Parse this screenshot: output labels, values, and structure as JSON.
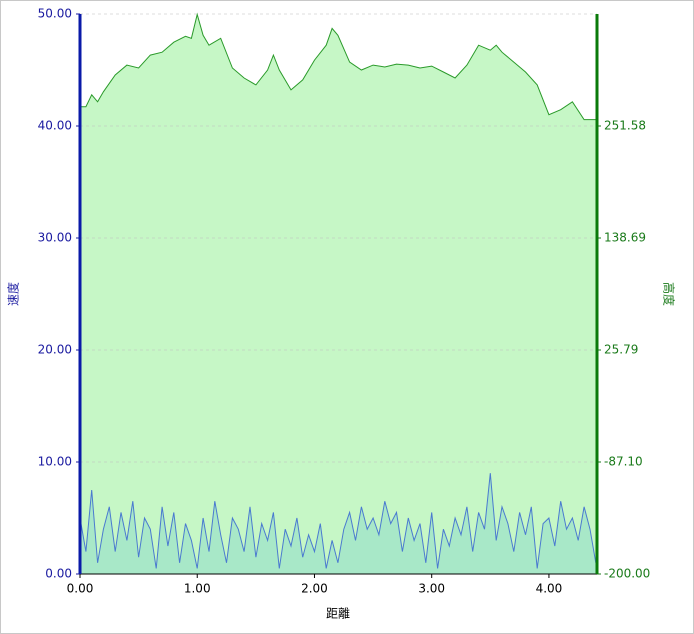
{
  "chart_data": {
    "type": "dual-area",
    "xlabel": "距離",
    "ylabel": "速度",
    "y2label": "高度",
    "xlim": [
      0,
      4.41
    ],
    "xticks": [
      {
        "value": 0,
        "label": "0.00"
      },
      {
        "value": 1,
        "label": "1.00"
      },
      {
        "value": 2,
        "label": "2.00"
      },
      {
        "value": 3,
        "label": "3.00"
      },
      {
        "value": 4,
        "label": "4.00"
      }
    ],
    "ylim": [
      0,
      50
    ],
    "yticks": [
      {
        "value": 0,
        "label": "0.00"
      },
      {
        "value": 10,
        "label": "10.00"
      },
      {
        "value": 20,
        "label": "20.00"
      },
      {
        "value": 30,
        "label": "30.00"
      },
      {
        "value": 40,
        "label": "40.00"
      },
      {
        "value": 50,
        "label": "50.00"
      }
    ],
    "y2lim": [
      -200,
      364.47
    ],
    "y2ticks": [
      {
        "value": -200,
        "label": "-200.00"
      },
      {
        "value": -87.1,
        "label": "-87.10"
      },
      25.79,
      138.69,
      251.58
    ],
    "grid": true,
    "series": [
      {
        "name": "高度",
        "axis": "y2",
        "color": "#2a9a2a",
        "fill": "#c6f7c6",
        "x": [
          0,
          0.05,
          0.1,
          0.15,
          0.2,
          0.3,
          0.4,
          0.5,
          0.6,
          0.7,
          0.8,
          0.9,
          0.95,
          1.0,
          1.05,
          1.1,
          1.2,
          1.3,
          1.4,
          1.5,
          1.6,
          1.65,
          1.7,
          1.8,
          1.9,
          2.0,
          2.1,
          2.15,
          2.2,
          2.3,
          2.4,
          2.5,
          2.6,
          2.7,
          2.8,
          2.9,
          3.0,
          3.1,
          3.2,
          3.3,
          3.4,
          3.5,
          3.55,
          3.6,
          3.7,
          3.8,
          3.9,
          4.0,
          4.1,
          4.2,
          4.3,
          4.4
        ],
        "values": [
          271,
          271,
          283,
          276,
          286,
          303,
          313,
          310,
          323,
          326,
          336,
          342,
          340,
          364,
          343,
          333,
          340,
          310,
          300,
          293,
          308,
          323,
          308,
          288,
          298,
          318,
          333,
          350,
          343,
          316,
          308,
          313,
          311,
          314,
          313,
          310,
          312,
          306,
          300,
          313,
          333,
          328,
          333,
          326,
          316,
          306,
          293,
          263,
          268,
          276,
          258,
          258
        ]
      },
      {
        "name": "速度",
        "axis": "y",
        "color": "#4a7ad0",
        "fill": "#a8e8c8",
        "x": [
          0,
          0.05,
          0.1,
          0.15,
          0.2,
          0.25,
          0.3,
          0.35,
          0.4,
          0.45,
          0.5,
          0.55,
          0.6,
          0.65,
          0.7,
          0.75,
          0.8,
          0.85,
          0.9,
          0.95,
          1.0,
          1.05,
          1.1,
          1.15,
          1.2,
          1.25,
          1.3,
          1.35,
          1.4,
          1.45,
          1.5,
          1.55,
          1.6,
          1.65,
          1.7,
          1.75,
          1.8,
          1.85,
          1.9,
          1.95,
          2.0,
          2.05,
          2.1,
          2.15,
          2.2,
          2.25,
          2.3,
          2.35,
          2.4,
          2.45,
          2.5,
          2.55,
          2.6,
          2.65,
          2.7,
          2.75,
          2.8,
          2.85,
          2.9,
          2.95,
          3.0,
          3.05,
          3.1,
          3.15,
          3.2,
          3.25,
          3.3,
          3.35,
          3.4,
          3.45,
          3.5,
          3.55,
          3.6,
          3.65,
          3.7,
          3.75,
          3.8,
          3.85,
          3.9,
          3.95,
          4.0,
          4.05,
          4.1,
          4.15,
          4.2,
          4.25,
          4.3,
          4.35,
          4.4
        ],
        "values": [
          5,
          2,
          7.5,
          1,
          4,
          6,
          2,
          5.5,
          3,
          6.5,
          1.5,
          5,
          4,
          0.5,
          6,
          2.5,
          5.5,
          1,
          4.5,
          3,
          0.5,
          5,
          2,
          6.5,
          3.5,
          1,
          5,
          4,
          2,
          6,
          1.5,
          4.5,
          3,
          5.5,
          0.5,
          4,
          2.5,
          5,
          1.5,
          3.5,
          2,
          4.5,
          0.5,
          3,
          1,
          4,
          5.5,
          3,
          6,
          4,
          5,
          3.5,
          6.5,
          4.5,
          5.5,
          2,
          5,
          3,
          4.5,
          1,
          5.5,
          0.5,
          4,
          2.5,
          5,
          3.5,
          6,
          2,
          5.5,
          4,
          9,
          3,
          6,
          4.5,
          2,
          5.5,
          3.5,
          6,
          0.5,
          4.5,
          5,
          2.5,
          6.5,
          4,
          5,
          3,
          6,
          4,
          1
        ]
      }
    ]
  }
}
